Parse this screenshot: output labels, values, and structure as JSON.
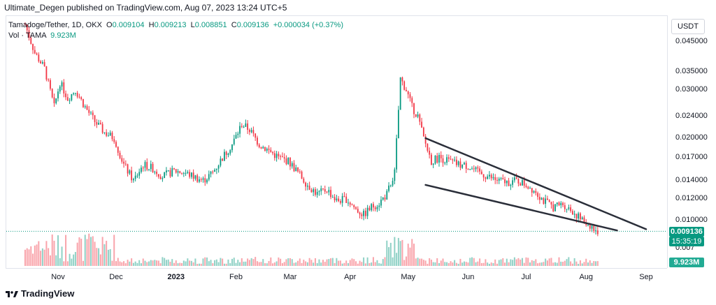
{
  "header": {
    "text": "Ultimate_Degen published on TradingView.com, Aug 07, 2023 13:24 UTC+5"
  },
  "legend": {
    "symbol": "Tamadoge/Tether, 1D, OKX",
    "o_label": "O",
    "o": "0.009104",
    "h_label": "H",
    "h": "0.009213",
    "l_label": "L",
    "l": "0.008851",
    "c_label": "C",
    "c": "0.009136",
    "change": "+0.000034 (+0.37%)",
    "vol_label": "Vol · TAMA",
    "vol": "9.923M"
  },
  "price_scale": {
    "currency": "USDT",
    "labels": [
      "0.045000",
      "0.035000",
      "0.030000",
      "0.024000",
      "0.020000",
      "0.017000",
      "0.014000",
      "0.012000",
      "0.010000",
      "0.007"
    ],
    "last_price": "0.009136",
    "countdown": "15:35:19",
    "volume_badge": "9.923M"
  },
  "time_scale": {
    "labels": [
      "Nov",
      "Dec",
      "2023",
      "Feb",
      "Mar",
      "Apr",
      "May",
      "Jun",
      "Jul",
      "Aug",
      "Sep"
    ]
  },
  "footer": {
    "brand": "TradingView"
  },
  "colors": {
    "up": "#089981",
    "down": "#f23645",
    "trendline": "#2a2e39",
    "grid": "#e0e3eb"
  },
  "chart_data": {
    "type": "candlestick",
    "title": "Tamadoge/Tether, 1D, OKX",
    "scale": "log",
    "ylim": [
      0.0075,
      0.05
    ],
    "y_ticks": [
      0.045,
      0.035,
      0.03,
      0.024,
      0.02,
      0.017,
      0.014,
      0.012,
      0.01
    ],
    "x_ticks": [
      "Nov",
      "Dec",
      "2023",
      "Feb",
      "Mar",
      "Apr",
      "May",
      "Jun",
      "Jul",
      "Aug",
      "Sep"
    ],
    "close_path": [
      {
        "date": "2022-10-15",
        "close": 0.052
      },
      {
        "date": "2022-10-20",
        "close": 0.041
      },
      {
        "date": "2022-10-25",
        "close": 0.036
      },
      {
        "date": "2022-10-30",
        "close": 0.026
      },
      {
        "date": "2022-11-02",
        "close": 0.032
      },
      {
        "date": "2022-11-06",
        "close": 0.028
      },
      {
        "date": "2022-11-10",
        "close": 0.03
      },
      {
        "date": "2022-11-15",
        "close": 0.026
      },
      {
        "date": "2022-11-20",
        "close": 0.023
      },
      {
        "date": "2022-11-25",
        "close": 0.021
      },
      {
        "date": "2022-11-30",
        "close": 0.02
      },
      {
        "date": "2022-12-05",
        "close": 0.016
      },
      {
        "date": "2022-12-10",
        "close": 0.014
      },
      {
        "date": "2022-12-15",
        "close": 0.016
      },
      {
        "date": "2022-12-20",
        "close": 0.0155
      },
      {
        "date": "2022-12-25",
        "close": 0.0145
      },
      {
        "date": "2022-12-31",
        "close": 0.0152
      },
      {
        "date": "2023-01-05",
        "close": 0.015
      },
      {
        "date": "2023-01-10",
        "close": 0.0145
      },
      {
        "date": "2023-01-15",
        "close": 0.014
      },
      {
        "date": "2023-01-20",
        "close": 0.015
      },
      {
        "date": "2023-01-25",
        "close": 0.017
      },
      {
        "date": "2023-01-30",
        "close": 0.019
      },
      {
        "date": "2023-02-04",
        "close": 0.0225
      },
      {
        "date": "2023-02-08",
        "close": 0.0215
      },
      {
        "date": "2023-02-13",
        "close": 0.019
      },
      {
        "date": "2023-02-18",
        "close": 0.018
      },
      {
        "date": "2023-02-23",
        "close": 0.017
      },
      {
        "date": "2023-02-28",
        "close": 0.0165
      },
      {
        "date": "2023-03-05",
        "close": 0.015
      },
      {
        "date": "2023-03-10",
        "close": 0.0135
      },
      {
        "date": "2023-03-15",
        "close": 0.0125
      },
      {
        "date": "2023-03-20",
        "close": 0.013
      },
      {
        "date": "2023-03-25",
        "close": 0.0118
      },
      {
        "date": "2023-03-30",
        "close": 0.012
      },
      {
        "date": "2023-04-04",
        "close": 0.011
      },
      {
        "date": "2023-04-08",
        "close": 0.0105
      },
      {
        "date": "2023-04-12",
        "close": 0.0112
      },
      {
        "date": "2023-04-16",
        "close": 0.0116
      },
      {
        "date": "2023-04-20",
        "close": 0.0125
      },
      {
        "date": "2023-04-24",
        "close": 0.015
      },
      {
        "date": "2023-04-27",
        "close": 0.033
      },
      {
        "date": "2023-04-30",
        "close": 0.03
      },
      {
        "date": "2023-05-03",
        "close": 0.026
      },
      {
        "date": "2023-05-06",
        "close": 0.024
      },
      {
        "date": "2023-05-09",
        "close": 0.02
      },
      {
        "date": "2023-05-13",
        "close": 0.0165
      },
      {
        "date": "2023-05-17",
        "close": 0.017
      },
      {
        "date": "2023-05-22",
        "close": 0.0165
      },
      {
        "date": "2023-05-27",
        "close": 0.016
      },
      {
        "date": "2023-06-01",
        "close": 0.0158
      },
      {
        "date": "2023-06-06",
        "close": 0.015
      },
      {
        "date": "2023-06-11",
        "close": 0.0145
      },
      {
        "date": "2023-06-16",
        "close": 0.014
      },
      {
        "date": "2023-06-21",
        "close": 0.0138
      },
      {
        "date": "2023-06-26",
        "close": 0.014
      },
      {
        "date": "2023-07-01",
        "close": 0.0135
      },
      {
        "date": "2023-07-06",
        "close": 0.0128
      },
      {
        "date": "2023-07-10",
        "close": 0.0118
      },
      {
        "date": "2023-07-15",
        "close": 0.0112
      },
      {
        "date": "2023-07-20",
        "close": 0.0115
      },
      {
        "date": "2023-07-25",
        "close": 0.0108
      },
      {
        "date": "2023-07-30",
        "close": 0.01
      },
      {
        "date": "2023-08-04",
        "close": 0.0095
      },
      {
        "date": "2023-08-06",
        "close": 0.009
      },
      {
        "date": "2023-08-07",
        "close": 0.009136
      }
    ],
    "trendlines": [
      {
        "name": "upper",
        "from": {
          "date": "2023-05-10",
          "price": 0.02
        },
        "to": {
          "date": "2023-09-01",
          "price": 0.0093
        }
      },
      {
        "name": "lower",
        "from": {
          "date": "2023-05-10",
          "price": 0.0135
        },
        "to": {
          "date": "2023-08-17",
          "price": 0.0092
        }
      }
    ]
  }
}
